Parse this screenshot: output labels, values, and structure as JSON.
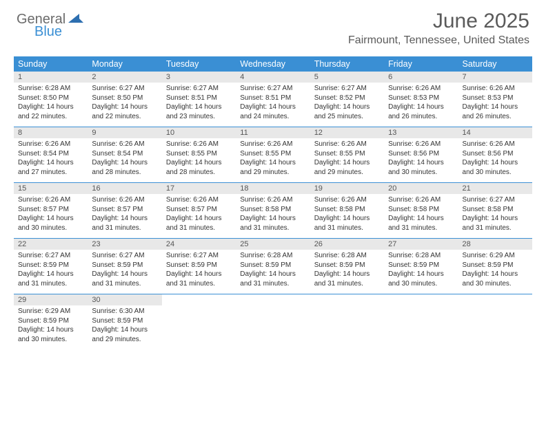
{
  "logo": {
    "text1": "General",
    "text2": "Blue",
    "text1_color": "#6b6b6b",
    "text2_color": "#3a8fd4",
    "icon_color": "#2d6fb0"
  },
  "header": {
    "month_title": "June 2025",
    "location": "Fairmount, Tennessee, United States"
  },
  "styling": {
    "header_bg": "#3a8fd4",
    "header_text": "#ffffff",
    "daynum_bg": "#e8e8e8",
    "daynum_color": "#555555",
    "body_text": "#333333",
    "week_sep_color": "#3a8fd4",
    "font_family": "Arial",
    "th_fontsize": 12.5,
    "daynum_fontsize": 11,
    "cell_fontsize": 10
  },
  "weekdays": [
    "Sunday",
    "Monday",
    "Tuesday",
    "Wednesday",
    "Thursday",
    "Friday",
    "Saturday"
  ],
  "days": [
    {
      "n": "1",
      "sr": "6:28 AM",
      "ss": "8:50 PM",
      "dl": "14 hours and 22 minutes."
    },
    {
      "n": "2",
      "sr": "6:27 AM",
      "ss": "8:50 PM",
      "dl": "14 hours and 22 minutes."
    },
    {
      "n": "3",
      "sr": "6:27 AM",
      "ss": "8:51 PM",
      "dl": "14 hours and 23 minutes."
    },
    {
      "n": "4",
      "sr": "6:27 AM",
      "ss": "8:51 PM",
      "dl": "14 hours and 24 minutes."
    },
    {
      "n": "5",
      "sr": "6:27 AM",
      "ss": "8:52 PM",
      "dl": "14 hours and 25 minutes."
    },
    {
      "n": "6",
      "sr": "6:26 AM",
      "ss": "8:53 PM",
      "dl": "14 hours and 26 minutes."
    },
    {
      "n": "7",
      "sr": "6:26 AM",
      "ss": "8:53 PM",
      "dl": "14 hours and 26 minutes."
    },
    {
      "n": "8",
      "sr": "6:26 AM",
      "ss": "8:54 PM",
      "dl": "14 hours and 27 minutes."
    },
    {
      "n": "9",
      "sr": "6:26 AM",
      "ss": "8:54 PM",
      "dl": "14 hours and 28 minutes."
    },
    {
      "n": "10",
      "sr": "6:26 AM",
      "ss": "8:55 PM",
      "dl": "14 hours and 28 minutes."
    },
    {
      "n": "11",
      "sr": "6:26 AM",
      "ss": "8:55 PM",
      "dl": "14 hours and 29 minutes."
    },
    {
      "n": "12",
      "sr": "6:26 AM",
      "ss": "8:55 PM",
      "dl": "14 hours and 29 minutes."
    },
    {
      "n": "13",
      "sr": "6:26 AM",
      "ss": "8:56 PM",
      "dl": "14 hours and 30 minutes."
    },
    {
      "n": "14",
      "sr": "6:26 AM",
      "ss": "8:56 PM",
      "dl": "14 hours and 30 minutes."
    },
    {
      "n": "15",
      "sr": "6:26 AM",
      "ss": "8:57 PM",
      "dl": "14 hours and 30 minutes."
    },
    {
      "n": "16",
      "sr": "6:26 AM",
      "ss": "8:57 PM",
      "dl": "14 hours and 31 minutes."
    },
    {
      "n": "17",
      "sr": "6:26 AM",
      "ss": "8:57 PM",
      "dl": "14 hours and 31 minutes."
    },
    {
      "n": "18",
      "sr": "6:26 AM",
      "ss": "8:58 PM",
      "dl": "14 hours and 31 minutes."
    },
    {
      "n": "19",
      "sr": "6:26 AM",
      "ss": "8:58 PM",
      "dl": "14 hours and 31 minutes."
    },
    {
      "n": "20",
      "sr": "6:26 AM",
      "ss": "8:58 PM",
      "dl": "14 hours and 31 minutes."
    },
    {
      "n": "21",
      "sr": "6:27 AM",
      "ss": "8:58 PM",
      "dl": "14 hours and 31 minutes."
    },
    {
      "n": "22",
      "sr": "6:27 AM",
      "ss": "8:59 PM",
      "dl": "14 hours and 31 minutes."
    },
    {
      "n": "23",
      "sr": "6:27 AM",
      "ss": "8:59 PM",
      "dl": "14 hours and 31 minutes."
    },
    {
      "n": "24",
      "sr": "6:27 AM",
      "ss": "8:59 PM",
      "dl": "14 hours and 31 minutes."
    },
    {
      "n": "25",
      "sr": "6:28 AM",
      "ss": "8:59 PM",
      "dl": "14 hours and 31 minutes."
    },
    {
      "n": "26",
      "sr": "6:28 AM",
      "ss": "8:59 PM",
      "dl": "14 hours and 31 minutes."
    },
    {
      "n": "27",
      "sr": "6:28 AM",
      "ss": "8:59 PM",
      "dl": "14 hours and 30 minutes."
    },
    {
      "n": "28",
      "sr": "6:29 AM",
      "ss": "8:59 PM",
      "dl": "14 hours and 30 minutes."
    },
    {
      "n": "29",
      "sr": "6:29 AM",
      "ss": "8:59 PM",
      "dl": "14 hours and 30 minutes."
    },
    {
      "n": "30",
      "sr": "6:30 AM",
      "ss": "8:59 PM",
      "dl": "14 hours and 29 minutes."
    }
  ],
  "labels": {
    "sunrise": "Sunrise:",
    "sunset": "Sunset:",
    "daylight": "Daylight:"
  }
}
